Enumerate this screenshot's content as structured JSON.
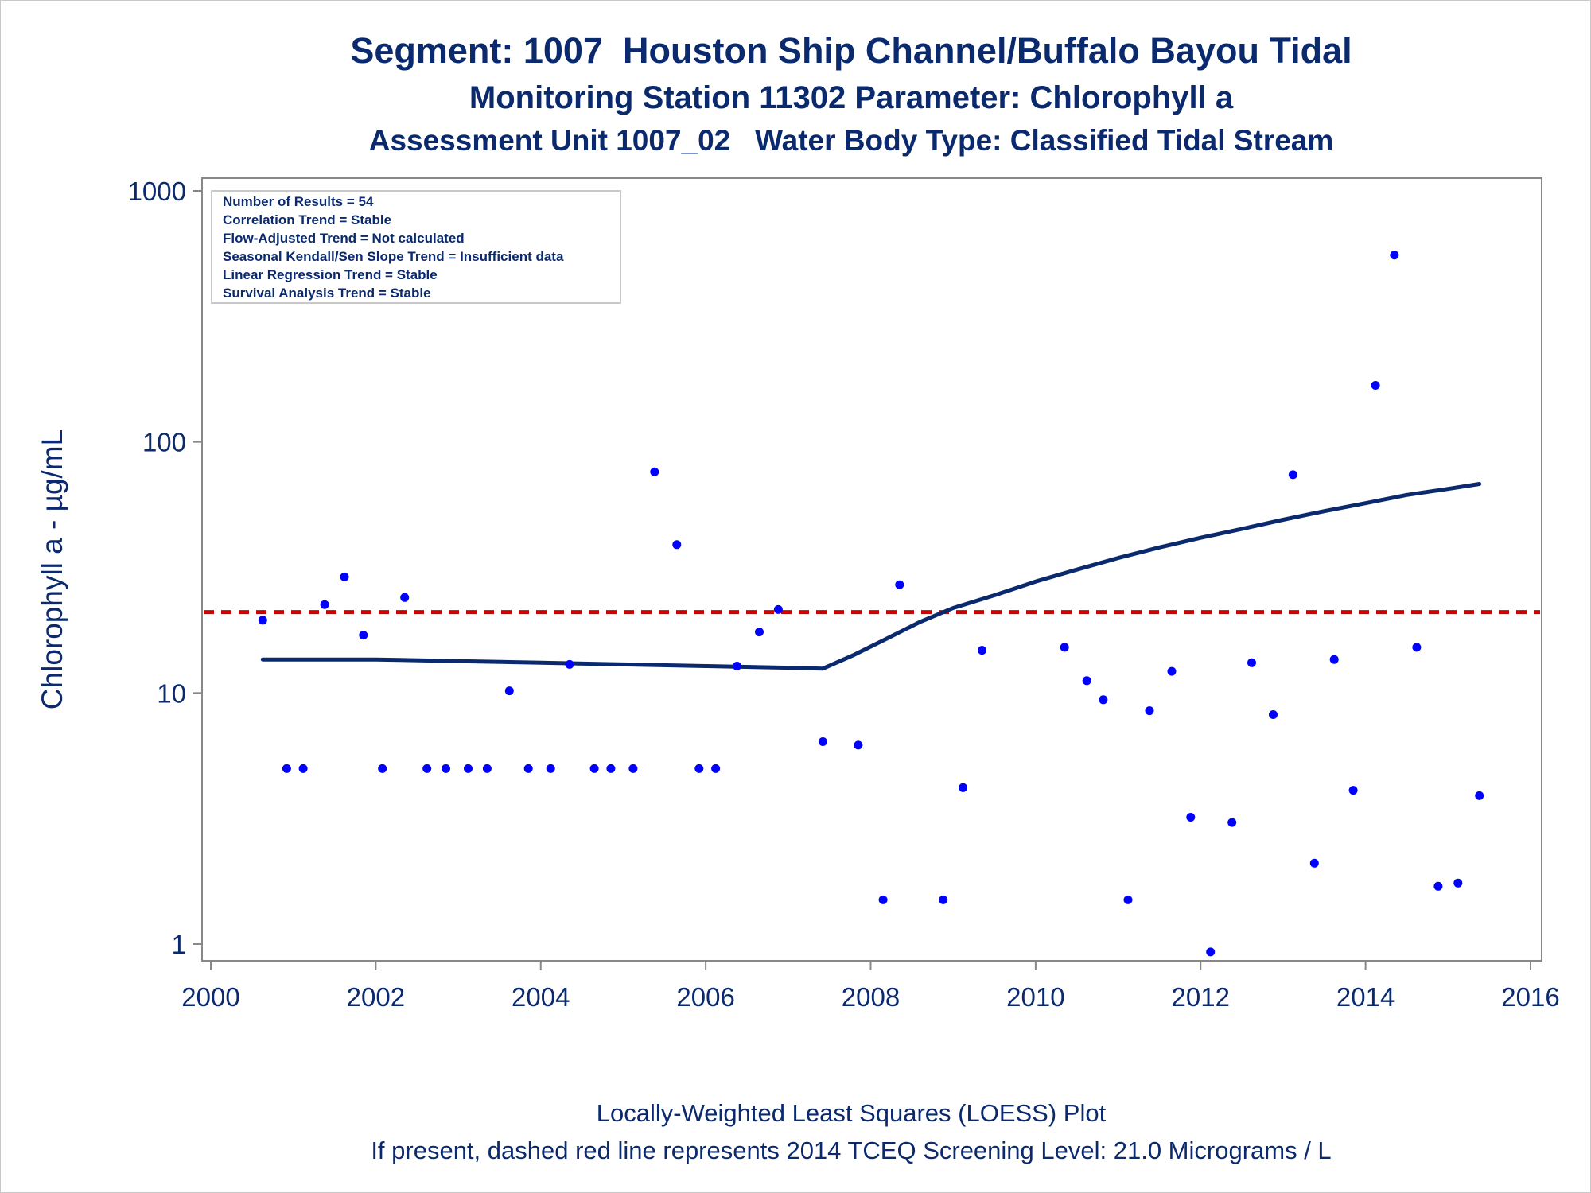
{
  "titles": {
    "line1": "Segment: 1007  Houston Ship Channel/Buffalo Bayou Tidal",
    "line2": "Monitoring Station 11302 Parameter: Chlorophyll a",
    "line3": "Assessment Unit 1007_02   Water Body Type: Classified Tidal Stream"
  },
  "footnotes": {
    "line1": "Locally-Weighted Least Squares (LOESS) Plot",
    "line2": "If present, dashed red line represents 2014 TCEQ Screening Level: 21.0 Micrograms / L"
  },
  "stats_box": [
    "Number of Results = 54",
    "Correlation Trend = Stable",
    "Flow-Adjusted Trend = Not calculated",
    "Seasonal Kendall/Sen Slope Trend = Insufficient data",
    "Linear Regression Trend = Stable",
    "Survival Analysis Trend = Stable"
  ],
  "colors": {
    "text": "#0b2a6e",
    "points": "#0000ff",
    "loess_line": "#0b2a6e",
    "screening_line": "#d40000",
    "axis": "#888888"
  },
  "chart_data": {
    "type": "scatter",
    "title": "",
    "xlabel": "",
    "ylabel": "Chlorophyll a -  µg/mL",
    "xlim": [
      2000,
      2016
    ],
    "ylim": [
      1,
      1000
    ],
    "y_scale": "log",
    "x_ticks": [
      2000,
      2002,
      2004,
      2006,
      2008,
      2010,
      2012,
      2014,
      2016
    ],
    "x_tick_labels": [
      "2000",
      "2002",
      "2004",
      "2006",
      "2008",
      "2010",
      "2012",
      "2014",
      "2016"
    ],
    "y_ticks": [
      1,
      10,
      100,
      1000
    ],
    "y_tick_labels": [
      "1",
      "10",
      "100",
      "1000"
    ],
    "grid": false,
    "screening_level": 21.0,
    "points": [
      {
        "x": 2000.63,
        "y": 19.5
      },
      {
        "x": 2000.92,
        "y": 5.0
      },
      {
        "x": 2001.12,
        "y": 5.0
      },
      {
        "x": 2001.38,
        "y": 22.5
      },
      {
        "x": 2001.62,
        "y": 29.0
      },
      {
        "x": 2001.85,
        "y": 17.0
      },
      {
        "x": 2002.08,
        "y": 5.0
      },
      {
        "x": 2002.35,
        "y": 24.0
      },
      {
        "x": 2002.62,
        "y": 5.0
      },
      {
        "x": 2002.85,
        "y": 5.0
      },
      {
        "x": 2003.12,
        "y": 5.0
      },
      {
        "x": 2003.35,
        "y": 5.0
      },
      {
        "x": 2003.62,
        "y": 10.2
      },
      {
        "x": 2003.85,
        "y": 5.0
      },
      {
        "x": 2004.12,
        "y": 5.0
      },
      {
        "x": 2004.35,
        "y": 13.0
      },
      {
        "x": 2004.65,
        "y": 5.0
      },
      {
        "x": 2004.85,
        "y": 5.0
      },
      {
        "x": 2005.12,
        "y": 5.0
      },
      {
        "x": 2005.38,
        "y": 76.0
      },
      {
        "x": 2005.65,
        "y": 39.0
      },
      {
        "x": 2005.92,
        "y": 5.0
      },
      {
        "x": 2006.12,
        "y": 5.0
      },
      {
        "x": 2006.38,
        "y": 12.8
      },
      {
        "x": 2006.65,
        "y": 17.5
      },
      {
        "x": 2006.88,
        "y": 21.5
      },
      {
        "x": 2007.42,
        "y": 6.4
      },
      {
        "x": 2007.85,
        "y": 6.2
      },
      {
        "x": 2008.15,
        "y": 1.5
      },
      {
        "x": 2008.35,
        "y": 27.0
      },
      {
        "x": 2008.88,
        "y": 1.5
      },
      {
        "x": 2009.12,
        "y": 4.2
      },
      {
        "x": 2009.35,
        "y": 14.8
      },
      {
        "x": 2010.35,
        "y": 15.2
      },
      {
        "x": 2010.62,
        "y": 11.2
      },
      {
        "x": 2010.82,
        "y": 9.4
      },
      {
        "x": 2011.12,
        "y": 1.5
      },
      {
        "x": 2011.38,
        "y": 8.5
      },
      {
        "x": 2011.65,
        "y": 12.2
      },
      {
        "x": 2011.88,
        "y": 3.2
      },
      {
        "x": 2012.12,
        "y": 0.93
      },
      {
        "x": 2012.38,
        "y": 3.05
      },
      {
        "x": 2012.62,
        "y": 13.2
      },
      {
        "x": 2012.88,
        "y": 8.2
      },
      {
        "x": 2013.12,
        "y": 74.0
      },
      {
        "x": 2013.38,
        "y": 2.1
      },
      {
        "x": 2013.62,
        "y": 13.6
      },
      {
        "x": 2013.85,
        "y": 4.1
      },
      {
        "x": 2014.12,
        "y": 168.0
      },
      {
        "x": 2014.35,
        "y": 555.0
      },
      {
        "x": 2014.62,
        "y": 15.2
      },
      {
        "x": 2014.88,
        "y": 1.7
      },
      {
        "x": 2015.12,
        "y": 1.75
      },
      {
        "x": 2015.38,
        "y": 3.9
      }
    ],
    "loess": [
      {
        "x": 2000.63,
        "y": 13.6
      },
      {
        "x": 2002.0,
        "y": 13.6
      },
      {
        "x": 2003.0,
        "y": 13.4
      },
      {
        "x": 2004.0,
        "y": 13.2
      },
      {
        "x": 2005.0,
        "y": 13.0
      },
      {
        "x": 2006.0,
        "y": 12.8
      },
      {
        "x": 2007.0,
        "y": 12.6
      },
      {
        "x": 2007.42,
        "y": 12.5
      },
      {
        "x": 2007.8,
        "y": 14.2
      },
      {
        "x": 2008.2,
        "y": 16.5
      },
      {
        "x": 2008.6,
        "y": 19.2
      },
      {
        "x": 2009.0,
        "y": 21.8
      },
      {
        "x": 2009.5,
        "y": 24.5
      },
      {
        "x": 2010.0,
        "y": 27.8
      },
      {
        "x": 2010.5,
        "y": 31.0
      },
      {
        "x": 2011.0,
        "y": 34.5
      },
      {
        "x": 2011.5,
        "y": 38.0
      },
      {
        "x": 2012.0,
        "y": 41.5
      },
      {
        "x": 2012.5,
        "y": 45.0
      },
      {
        "x": 2013.0,
        "y": 49.0
      },
      {
        "x": 2013.5,
        "y": 53.0
      },
      {
        "x": 2014.0,
        "y": 57.0
      },
      {
        "x": 2014.5,
        "y": 61.5
      },
      {
        "x": 2015.0,
        "y": 65.0
      },
      {
        "x": 2015.38,
        "y": 68.0
      }
    ]
  }
}
